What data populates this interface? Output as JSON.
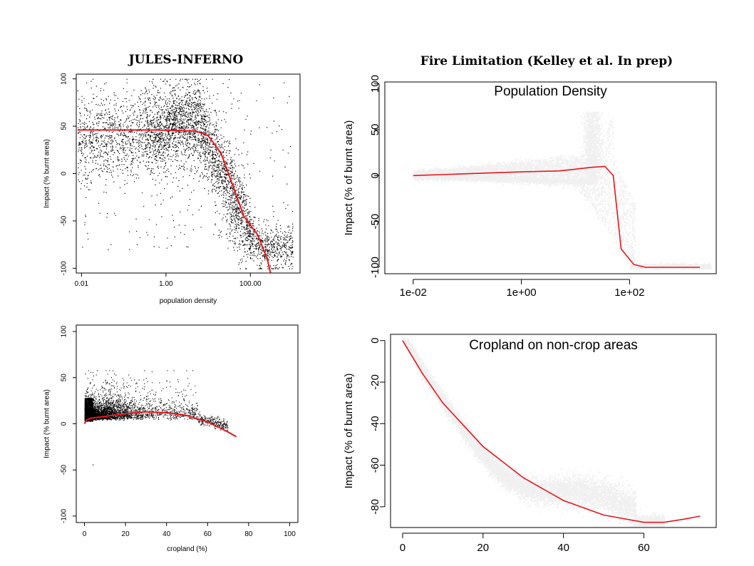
{
  "header": {
    "left_title": "JULES-INFERNO",
    "right_title": "Fire Limitation (Kelley et al. In prep)"
  },
  "chart_data": [
    {
      "type": "scatter",
      "title": "",
      "xlabel": "population density",
      "ylabel": "Impact (% burnt area)",
      "xscale": "log10",
      "xlim": [
        0.0075,
        1500
      ],
      "ylim": [
        -105,
        105
      ],
      "xticks": [
        0.01,
        1,
        100
      ],
      "xtick_labels": [
        "0.01",
        "1.00",
        "100.00"
      ],
      "yticks": [
        -100,
        -50,
        0,
        50,
        100
      ],
      "ytick_labels": [
        "-100",
        "-50",
        "0",
        "50",
        "100"
      ],
      "points_color": "#000000",
      "fit_color": "#e8161d",
      "fit_line": {
        "x": [
          0.008,
          0.5,
          5,
          10,
          20,
          40,
          70,
          150,
          250,
          300
        ],
        "y": [
          46,
          46,
          45,
          40,
          22,
          -15,
          -45,
          -65,
          -90,
          -105
        ]
      }
    },
    {
      "type": "scatter",
      "title": "Population Density",
      "xlabel": "",
      "ylabel": "Impact (% of burnt area)",
      "xscale": "log10",
      "xlim": [
        0.003,
        4000
      ],
      "ylim": [
        -107,
        102
      ],
      "xticks": [
        0.01,
        1,
        100
      ],
      "xtick_labels": [
        "1e-02",
        "1e+00",
        "1e+02"
      ],
      "yticks": [
        -100,
        -50,
        0,
        50,
        100
      ],
      "ytick_labels": [
        "-100",
        "-50",
        "0",
        "50",
        "100"
      ],
      "points_color": "#000000",
      "fit_color": "#e8161d",
      "fit_line": {
        "x": [
          0.01,
          0.1,
          1,
          5,
          10,
          20,
          35,
          50,
          70,
          120,
          200,
          500,
          2000
        ],
        "y": [
          0,
          2,
          4,
          5,
          7,
          9,
          10,
          0,
          -80,
          -97,
          -100,
          -100,
          -100
        ]
      }
    },
    {
      "type": "scatter",
      "title": "",
      "xlabel": "cropland (%)",
      "ylabel": "Impact (% burnt area)",
      "xlim": [
        -4,
        104
      ],
      "ylim": [
        -107,
        107
      ],
      "xticks": [
        0,
        20,
        40,
        60,
        80,
        100
      ],
      "xtick_labels": [
        "0",
        "20",
        "40",
        "60",
        "80",
        "100"
      ],
      "yticks": [
        -100,
        -50,
        0,
        50,
        100
      ],
      "ytick_labels": [
        "-100",
        "-50",
        "0",
        "50",
        "100"
      ],
      "points_color": "#000000",
      "fit_color": "#e8161d",
      "fit_line": {
        "x": [
          0,
          1,
          3,
          10,
          20,
          30,
          40,
          50,
          60,
          70,
          74
        ],
        "y": [
          0,
          4,
          6,
          8,
          11,
          13,
          12,
          9,
          2,
          -9,
          -14
        ]
      }
    },
    {
      "type": "scatter",
      "title": "Cropland on non-crop areas",
      "xlabel": "",
      "ylabel": "Impact (% of burnt area)",
      "xlim": [
        -3,
        78
      ],
      "ylim": [
        -90,
        3
      ],
      "xticks": [
        0,
        20,
        40,
        60
      ],
      "xtick_labels": [
        "0",
        "20",
        "40",
        "60"
      ],
      "yticks": [
        -80,
        -60,
        -40,
        -20,
        0
      ],
      "ytick_labels": [
        "-80",
        "-60",
        "-40",
        "-20",
        "0"
      ],
      "points_color": "#000000",
      "fit_color": "#e8161d",
      "fit_line": {
        "x": [
          0,
          5,
          10,
          20,
          30,
          40,
          50,
          60,
          65,
          70,
          74
        ],
        "y": [
          0,
          -16,
          -30,
          -51,
          -66,
          -77,
          -84,
          -87.5,
          -87.5,
          -86,
          -84.5
        ]
      }
    }
  ]
}
